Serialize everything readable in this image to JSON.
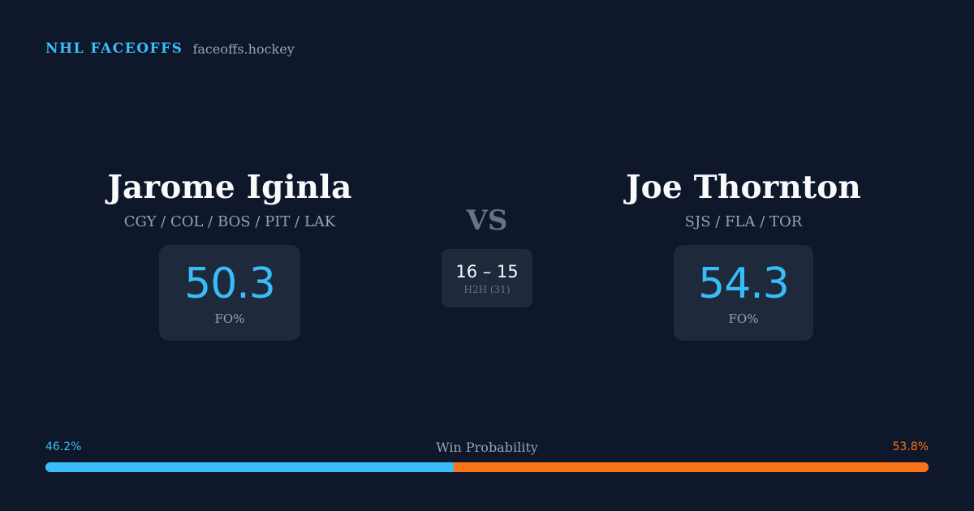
{
  "brand": {
    "name": "NHL FACEOFFS",
    "domain": "faceoffs.hockey"
  },
  "players": [
    {
      "name": "Jarome Iginla",
      "teams": "CGY / COL / BOS / PIT / LAK",
      "stat_value": "50.3",
      "stat_label": "FO%"
    },
    {
      "name": "Joe Thornton",
      "teams": "SJS / FLA / TOR",
      "stat_value": "54.3",
      "stat_label": "FO%"
    }
  ],
  "versus": {
    "label": "VS",
    "h2h_score": "16 – 15",
    "h2h_label": "H2H (31)"
  },
  "win_probability": {
    "title": "Win Probability",
    "left_label": "46.2%",
    "right_label": "53.8%",
    "left_value": 46.2,
    "right_value": 53.8,
    "left_color": "#38bdf8",
    "right_color": "#f97316"
  },
  "colors": {
    "background": "#0f172a",
    "card": "#1e293b",
    "accent": "#38bdf8",
    "secondary_accent": "#f97316",
    "muted_text": "#94a3b8"
  }
}
